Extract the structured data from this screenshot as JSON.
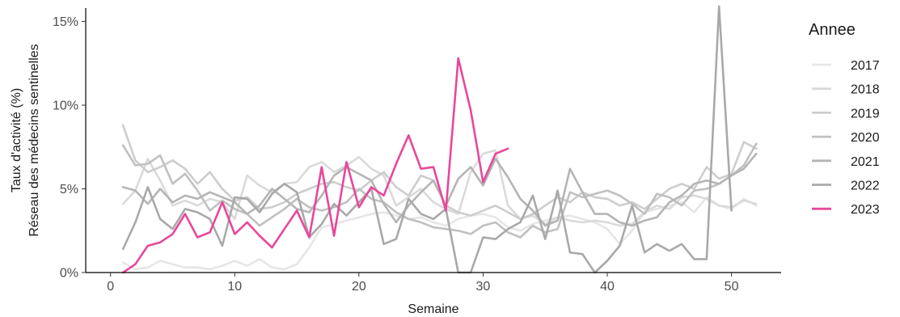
{
  "chart_data": {
    "type": "line",
    "xlabel": "Semaine",
    "ylabel_line1": "Taux d'activité (%)",
    "ylabel_line2": "Réseau des médecins sentinelles",
    "xlim": [
      -2,
      54
    ],
    "ylim": [
      0,
      15.8
    ],
    "xticks": [
      0,
      10,
      20,
      30,
      40,
      50
    ],
    "yticks": [
      0,
      5,
      10,
      15
    ],
    "ytick_labels": [
      "0%",
      "5%",
      "10%",
      "15%"
    ],
    "legend_title": "Annee",
    "legend_position": "right",
    "grid": false,
    "series": [
      {
        "name": "2017",
        "color": "#e6e6e6",
        "x": [
          1,
          2,
          3,
          4,
          5,
          6,
          7,
          8,
          9,
          10,
          11,
          12,
          13,
          14,
          15,
          16,
          17,
          18,
          19,
          20,
          21,
          22,
          23,
          24,
          25,
          26,
          27,
          28,
          29,
          30,
          31,
          32,
          33,
          34,
          35,
          36,
          37,
          38,
          39,
          40,
          41,
          42,
          43,
          44,
          45,
          46,
          47,
          48,
          49,
          50,
          51,
          52
        ],
        "y": [
          0.6,
          0.2,
          0.3,
          0.7,
          0.5,
          0.3,
          0.3,
          0.2,
          0.4,
          0.7,
          0.4,
          0.8,
          0.3,
          0.2,
          0.5,
          1.5,
          2.7,
          2.9,
          3.1,
          3.3,
          3.5,
          3.6,
          3.4,
          3.2,
          3.3,
          3.0,
          2.8,
          3.2,
          3.4,
          3.5,
          3.3,
          2.7,
          2.5,
          2.9,
          3.1,
          3.3,
          3.4,
          3.2,
          3.0,
          2.6,
          1.7,
          2.5,
          3.6,
          3.8,
          4.0,
          4.2,
          3.6,
          4.5,
          4.0,
          3.8,
          4.4,
          4.0
        ]
      },
      {
        "name": "2018",
        "color": "#dadada",
        "x": [
          1,
          2,
          3,
          4,
          5,
          6,
          7,
          8,
          9,
          10,
          11,
          12,
          13,
          14,
          15,
          16,
          17,
          18,
          19,
          20,
          21,
          22,
          23,
          24,
          25,
          26,
          27,
          28,
          29,
          30,
          31,
          32,
          33,
          34,
          35,
          36,
          37,
          38,
          39,
          40,
          41,
          42,
          43,
          44,
          45,
          46,
          47,
          48,
          49,
          50,
          51,
          52
        ],
        "y": [
          4.1,
          4.9,
          6.8,
          5.5,
          4.0,
          4.3,
          4.0,
          4.4,
          4.2,
          3.2,
          5.8,
          5.2,
          4.8,
          5.3,
          5.4,
          6.3,
          6.6,
          6.0,
          6.4,
          6.9,
          6.2,
          5.8,
          4.0,
          4.5,
          5.0,
          4.2,
          3.8,
          3.5,
          6.0,
          7.1,
          7.3,
          4.0,
          3.2,
          3.4,
          2.9,
          3.3,
          3.1,
          3.0,
          3.1,
          3.0,
          2.8,
          2.9,
          3.6,
          4.0,
          3.8,
          4.5,
          4.6,
          4.4,
          4.0,
          3.9,
          4.3,
          4.1
        ]
      },
      {
        "name": "2019",
        "color": "#cdcdcd",
        "x": [
          1,
          2,
          3,
          4,
          5,
          6,
          7,
          8,
          9,
          10,
          11,
          12,
          13,
          14,
          15,
          16,
          17,
          18,
          19,
          20,
          21,
          22,
          23,
          24,
          25,
          26,
          27,
          28,
          29,
          30,
          31,
          32,
          33,
          34,
          35,
          36,
          37,
          38,
          39,
          40,
          41,
          42,
          43,
          44,
          45,
          46,
          47,
          48,
          49,
          50,
          51,
          52
        ],
        "y": [
          8.8,
          6.7,
          6.0,
          6.3,
          6.7,
          6.2,
          5.3,
          6.0,
          5.0,
          4.3,
          4.5,
          3.8,
          3.9,
          4.2,
          4.7,
          5.0,
          5.3,
          5.4,
          5.1,
          4.9,
          5.5,
          6.0,
          5.1,
          4.6,
          5.8,
          5.5,
          4.0,
          3.6,
          3.4,
          3.7,
          4.0,
          3.6,
          3.2,
          3.5,
          4.0,
          4.5,
          4.2,
          4.8,
          4.5,
          4.4,
          4.0,
          4.2,
          3.8,
          4.4,
          5.0,
          5.3,
          5.0,
          6.3,
          5.6,
          5.9,
          7.8,
          7.4
        ]
      },
      {
        "name": "2020",
        "color": "#c0c0c0",
        "x": [
          1,
          2,
          3,
          4,
          5,
          6,
          7,
          8,
          9,
          10,
          11,
          12,
          13,
          14,
          15,
          16,
          17,
          18,
          19,
          20,
          21,
          22,
          23,
          24,
          25,
          26,
          27,
          28,
          29,
          30,
          31,
          32,
          33,
          34,
          35,
          36,
          37,
          38,
          39,
          40,
          41,
          42,
          43,
          44,
          45,
          46,
          47,
          48,
          49,
          50,
          51,
          52
        ],
        "y": [
          7.6,
          6.4,
          6.5,
          7.0,
          5.3,
          5.9,
          4.9,
          3.7,
          4.3,
          3.8,
          3.5,
          2.8,
          3.3,
          3.8,
          4.4,
          3.9,
          3.7,
          3.9,
          4.2,
          5.0,
          4.4,
          4.2,
          3.6,
          3.2,
          3.0,
          2.7,
          2.6,
          2.5,
          2.3,
          2.8,
          3.0,
          2.4,
          2.1,
          2.8,
          2.4,
          2.6,
          4.8,
          4.5,
          4.7,
          4.9,
          4.6,
          4.1,
          3.5,
          4.7,
          4.5,
          4.0,
          4.9,
          5.0,
          5.3,
          5.8,
          6.4,
          7.7
        ]
      },
      {
        "name": "2021",
        "color": "#b5b5b5",
        "x": [
          1,
          2,
          3,
          4,
          5,
          6,
          7,
          8,
          9,
          10,
          11,
          12,
          13,
          14,
          15,
          16,
          17,
          18,
          19,
          20,
          21,
          22,
          23,
          24,
          25,
          26,
          27,
          28,
          29,
          30,
          31,
          32,
          33,
          34,
          35,
          36,
          37,
          38,
          39,
          40,
          41,
          42,
          43,
          44,
          45,
          46,
          47,
          48,
          49,
          50,
          51,
          52
        ],
        "y": [
          5.1,
          4.9,
          4.1,
          5.0,
          4.2,
          4.6,
          4.4,
          4.8,
          4.5,
          4.2,
          3.5,
          4.0,
          5.0,
          4.4,
          3.8,
          3.6,
          4.6,
          5.8,
          6.3,
          5.9,
          5.5,
          4.1,
          3.0,
          4.0,
          4.8,
          5.5,
          4.0,
          5.6,
          6.3,
          5.2,
          6.8,
          5.7,
          4.4,
          3.7,
          2.8,
          3.1,
          6.2,
          4.8,
          3.5,
          3.5,
          3.0,
          2.8,
          3.1,
          3.3,
          4.2,
          4.6,
          5.3,
          5.5,
          5.3,
          5.8,
          6.2,
          7.1
        ]
      },
      {
        "name": "2022",
        "color": "#a9a9a9",
        "x": [
          1,
          2,
          3,
          4,
          5,
          6,
          7,
          8,
          9,
          10,
          11,
          12,
          13,
          14,
          15,
          16,
          17,
          18,
          19,
          20,
          21,
          22,
          23,
          24,
          25,
          26,
          27,
          28,
          29,
          30,
          31,
          32,
          33,
          34,
          35,
          36,
          37,
          38,
          39,
          40,
          41,
          42,
          43,
          44,
          45,
          46,
          47,
          48,
          49,
          50
        ],
        "y": [
          1.4,
          3.0,
          5.1,
          3.2,
          2.6,
          3.8,
          3.6,
          3.2,
          1.6,
          4.5,
          4.4,
          3.6,
          4.7,
          5.3,
          4.8,
          2.1,
          2.9,
          4.1,
          3.4,
          4.2,
          5.0,
          1.7,
          2.0,
          4.4,
          3.5,
          3.2,
          3.8,
          0.0,
          0.0,
          2.1,
          2.0,
          2.6,
          3.0,
          4.6,
          2.0,
          4.9,
          1.2,
          1.1,
          0.0,
          0.7,
          1.6,
          4.0,
          1.2,
          1.7,
          1.3,
          1.7,
          0.8,
          0.8,
          15.9,
          3.7
        ]
      },
      {
        "name": "2023",
        "color": "#e8479b",
        "x": [
          1,
          2,
          3,
          4,
          5,
          6,
          7,
          8,
          9,
          10,
          11,
          12,
          13,
          14,
          15,
          16,
          17,
          18,
          19,
          20,
          21,
          22,
          23,
          24,
          25,
          26,
          27,
          28,
          29,
          30,
          31,
          32
        ],
        "y": [
          0.0,
          0.5,
          1.6,
          1.8,
          2.3,
          3.5,
          2.1,
          2.4,
          4.2,
          2.3,
          3.0,
          2.2,
          1.5,
          2.6,
          3.7,
          2.1,
          6.3,
          2.2,
          6.6,
          3.9,
          5.1,
          4.6,
          6.5,
          8.2,
          6.2,
          6.3,
          3.7,
          12.8,
          9.7,
          5.4,
          7.1,
          7.4
        ]
      }
    ]
  }
}
